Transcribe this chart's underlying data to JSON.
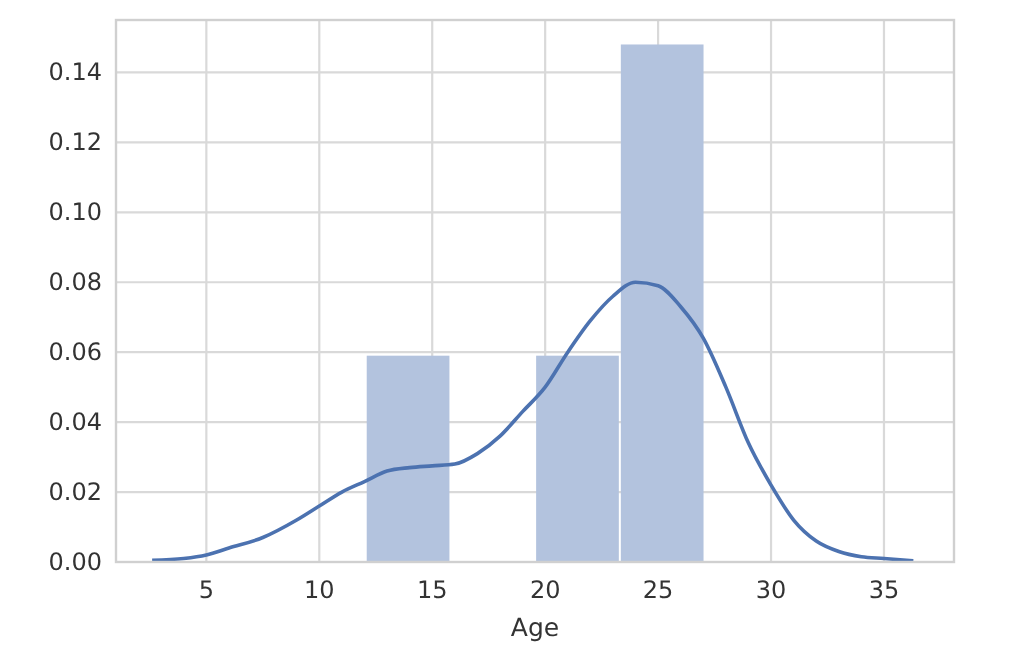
{
  "chart_data": {
    "type": "histogram",
    "xlabel": "Age",
    "bins": [
      12.1,
      15.85,
      19.6,
      23.35,
      27.1
    ],
    "values": [
      0.059,
      0,
      0.059,
      0.148
    ],
    "color": "#b3c3de",
    "series": [
      {
        "type": "line",
        "color": "#4c72b0",
        "x": [
          2.6,
          4,
          5,
          6,
          7.5,
          9,
          10,
          11,
          12,
          13,
          14,
          15,
          16,
          17,
          18,
          19,
          20,
          21,
          22,
          23,
          24,
          25,
          26,
          27,
          28,
          29,
          30,
          31,
          32,
          33,
          34,
          35,
          36.3
        ],
        "values": [
          0.0005,
          0.001,
          0.002,
          0.004,
          0.007,
          0.012,
          0.016,
          0.02,
          0.023,
          0.026,
          0.027,
          0.0275,
          0.028,
          0.031,
          0.036,
          0.043,
          0.05,
          0.06,
          0.069,
          0.076,
          0.08,
          0.079,
          0.073,
          0.064,
          0.05,
          0.034,
          0.022,
          0.012,
          0.006,
          0.003,
          0.0015,
          0.001,
          0.0003
        ]
      }
    ],
    "xlim": [
      1.0,
      38.1
    ],
    "ylim": [
      0,
      0.155
    ],
    "xticks": [
      5,
      10,
      15,
      20,
      25,
      30,
      35
    ],
    "yticks": [
      {
        "value": 0,
        "label": "0.00"
      },
      {
        "value": 0.02,
        "label": "0.02"
      },
      {
        "value": 0.04,
        "label": "0.04"
      },
      {
        "value": 0.06,
        "label": "0.06"
      },
      {
        "value": 0.08,
        "label": "0.08"
      },
      {
        "value": 0.1,
        "label": "0.10"
      },
      {
        "value": 0.12,
        "label": "0.12"
      },
      {
        "value": 0.14,
        "label": "0.14"
      }
    ],
    "grid": true
  }
}
